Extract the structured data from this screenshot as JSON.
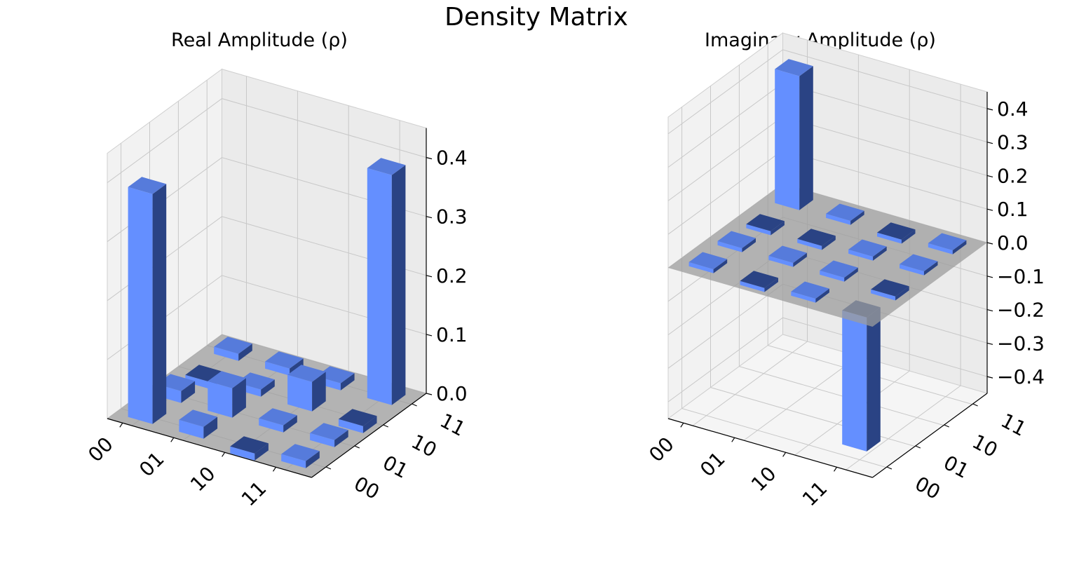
{
  "title": "Density Matrix",
  "colors": {
    "pos": "#648fff",
    "neg": "#2a4384",
    "plane": "#9c9c9c"
  },
  "chart_data": [
    {
      "type": "bar3d",
      "title": "Real Amplitude (ρ)",
      "row_labels": [
        "00",
        "01",
        "10",
        "11"
      ],
      "col_labels": [
        "00",
        "01",
        "10",
        "11"
      ],
      "zticks": [
        "0.0",
        "0.1",
        "0.2",
        "0.3",
        "0.4"
      ],
      "zlim": [
        0,
        0.45
      ],
      "values": [
        [
          0.39,
          0.02,
          -0.01,
          0.01
        ],
        [
          0.02,
          0.05,
          0.01,
          0.01
        ],
        [
          -0.01,
          0.01,
          0.05,
          0.01
        ],
        [
          0.01,
          0.01,
          -0.01,
          0.39
        ]
      ]
    },
    {
      "type": "bar3d",
      "title": "Imaginary Amplitude (ρ)",
      "row_labels": [
        "00",
        "01",
        "10",
        "11"
      ],
      "col_labels": [
        "00",
        "01",
        "10",
        "11"
      ],
      "zticks": [
        "0.4",
        "0.3",
        "0.2",
        "0.1",
        "0.0",
        "−0.1",
        "−0.2",
        "−0.3",
        "−0.4"
      ],
      "zlim": [
        -0.45,
        0.45
      ],
      "values": [
        [
          0.0,
          0.01,
          -0.01,
          0.4
        ],
        [
          -0.01,
          0.0,
          -0.01,
          0.01
        ],
        [
          0.01,
          0.01,
          0.0,
          -0.01
        ],
        [
          -0.4,
          -0.01,
          0.01,
          0.0
        ]
      ]
    }
  ]
}
